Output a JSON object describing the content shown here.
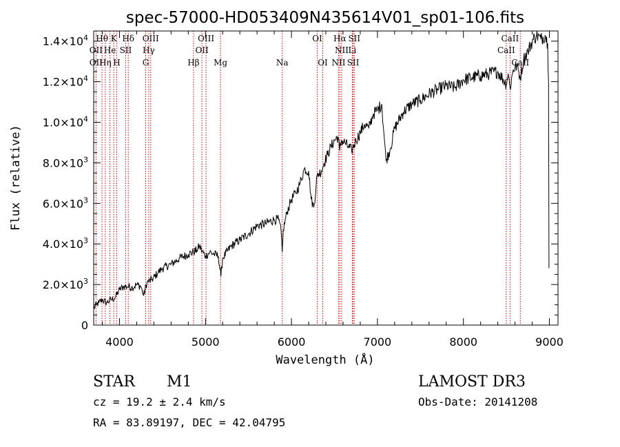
{
  "chart_data": {
    "type": "line",
    "title": "spec-57000-HD053409N435614V01_sp01-106.fits",
    "xlabel": "Wavelength (Å)",
    "ylabel": "Flux (relative)",
    "xlim": [
      3700,
      9100
    ],
    "ylim": [
      0,
      14500
    ],
    "x_ticks": [
      4000,
      5000,
      6000,
      7000,
      8000,
      9000
    ],
    "x_tick_labels": [
      "4000",
      "5000",
      "6000",
      "7000",
      "8000",
      "9000"
    ],
    "y_ticks": [
      0,
      2000,
      4000,
      6000,
      8000,
      10000,
      12000,
      14000
    ],
    "y_tick_labels": [
      {
        "mant": "0",
        "exp": ""
      },
      {
        "mant": "2.0×10",
        "exp": "3"
      },
      {
        "mant": "4.0×10",
        "exp": "3"
      },
      {
        "mant": "6.0×10",
        "exp": "3"
      },
      {
        "mant": "8.0×10",
        "exp": "3"
      },
      {
        "mant": "1.0×10",
        "exp": "4"
      },
      {
        "mant": "1.2×10",
        "exp": "4"
      },
      {
        "mant": "1.4×10",
        "exp": "4"
      }
    ],
    "series": [
      {
        "name": "flux",
        "points": [
          [
            3700,
            800
          ],
          [
            3730,
            1000
          ],
          [
            3760,
            1100
          ],
          [
            3800,
            1250
          ],
          [
            3850,
            1100
          ],
          [
            3900,
            1250
          ],
          [
            3950,
            1350
          ],
          [
            4000,
            1750
          ],
          [
            4050,
            1900
          ],
          [
            4100,
            1900
          ],
          [
            4150,
            1850
          ],
          [
            4200,
            2000
          ],
          [
            4250,
            1900
          ],
          [
            4280,
            1450
          ],
          [
            4320,
            2100
          ],
          [
            4380,
            2250
          ],
          [
            4450,
            2600
          ],
          [
            4500,
            2800
          ],
          [
            4600,
            3000
          ],
          [
            4700,
            3300
          ],
          [
            4800,
            3500
          ],
          [
            4860,
            3600
          ],
          [
            4900,
            3700
          ],
          [
            4930,
            3900
          ],
          [
            4960,
            3650
          ],
          [
            5000,
            3400
          ],
          [
            5050,
            3600
          ],
          [
            5100,
            3500
          ],
          [
            5150,
            3400
          ],
          [
            5180,
            2400
          ],
          [
            5200,
            3300
          ],
          [
            5300,
            3900
          ],
          [
            5400,
            4200
          ],
          [
            5500,
            4500
          ],
          [
            5600,
            4900
          ],
          [
            5700,
            5000
          ],
          [
            5800,
            5200
          ],
          [
            5850,
            5200
          ],
          [
            5880,
            4600
          ],
          [
            5893,
            3600
          ],
          [
            5905,
            4700
          ],
          [
            5950,
            5600
          ],
          [
            6000,
            6200
          ],
          [
            6050,
            6500
          ],
          [
            6100,
            7000
          ],
          [
            6150,
            7700
          ],
          [
            6200,
            7600
          ],
          [
            6230,
            6200
          ],
          [
            6260,
            5800
          ],
          [
            6300,
            7400
          ],
          [
            6350,
            7600
          ],
          [
            6380,
            8000
          ],
          [
            6420,
            8400
          ],
          [
            6460,
            8800
          ],
          [
            6500,
            9100
          ],
          [
            6540,
            9300
          ],
          [
            6562,
            8600
          ],
          [
            6580,
            9100
          ],
          [
            6620,
            9000
          ],
          [
            6660,
            8800
          ],
          [
            6700,
            8600
          ],
          [
            6750,
            9100
          ],
          [
            6800,
            9500
          ],
          [
            6850,
            9900
          ],
          [
            6900,
            9700
          ],
          [
            6950,
            10400
          ],
          [
            7000,
            10600
          ],
          [
            7050,
            10900
          ],
          [
            7080,
            9200
          ],
          [
            7100,
            8100
          ],
          [
            7150,
            8700
          ],
          [
            7200,
            9700
          ],
          [
            7300,
            10500
          ],
          [
            7400,
            10900
          ],
          [
            7500,
            11100
          ],
          [
            7600,
            11400
          ],
          [
            7700,
            11600
          ],
          [
            7800,
            11800
          ],
          [
            7900,
            11700
          ],
          [
            8000,
            12100
          ],
          [
            8100,
            12200
          ],
          [
            8200,
            12300
          ],
          [
            8300,
            12400
          ],
          [
            8400,
            12500
          ],
          [
            8498,
            11900
          ],
          [
            8520,
            12400
          ],
          [
            8542,
            11700
          ],
          [
            8580,
            12600
          ],
          [
            8620,
            12800
          ],
          [
            8662,
            12200
          ],
          [
            8700,
            13100
          ],
          [
            8750,
            13500
          ],
          [
            8800,
            14000
          ],
          [
            8850,
            14300
          ],
          [
            8900,
            14100
          ],
          [
            8950,
            14300
          ],
          [
            8980,
            13900
          ],
          [
            8990,
            12000
          ],
          [
            8995,
            2800
          ]
        ]
      }
    ],
    "lines_top": [
      {
        "label": "Hθ",
        "x": 3797,
        "row": 0
      },
      {
        "label": "K",
        "x": 3934,
        "row": 0
      },
      {
        "label": "Hδ",
        "x": 4102,
        "row": 0
      },
      {
        "label": "OIII",
        "x": 4363,
        "row": 0
      },
      {
        "label": "OIII",
        "x": 5007,
        "row": 0
      },
      {
        "label": "OI",
        "x": 6300,
        "row": 0
      },
      {
        "label": "Hα",
        "x": 6563,
        "row": 0
      },
      {
        "label": "SII",
        "x": 6731,
        "row": 0
      },
      {
        "label": "CaII",
        "x": 8542,
        "row": 0
      },
      {
        "label": "OII",
        "x": 3727,
        "row": 1
      },
      {
        "label": "He",
        "x": 3889,
        "row": 1
      },
      {
        "label": "SII",
        "x": 4072,
        "row": 1
      },
      {
        "label": "Hγ",
        "x": 4340,
        "row": 1
      },
      {
        "label": "OII",
        "x": 4959,
        "row": 1
      },
      {
        "label": "NII",
        "x": 6584,
        "row": 1
      },
      {
        "label": "Li",
        "x": 6708,
        "row": 1
      },
      {
        "label": "CaII",
        "x": 8498,
        "row": 1
      }
    ],
    "lines_bottom": [
      {
        "label": "OII",
        "x": 3727,
        "row": 0
      },
      {
        "label": "Hη",
        "x": 3835,
        "row": 0
      },
      {
        "label": "H",
        "x": 3968,
        "row": 0
      },
      {
        "label": "G",
        "x": 4305,
        "row": 0
      },
      {
        "label": "Hβ",
        "x": 4861,
        "row": 0
      },
      {
        "label": "Mg",
        "x": 5175,
        "row": 0
      },
      {
        "label": "Na",
        "x": 5893,
        "row": 0
      },
      {
        "label": "OI",
        "x": 6364,
        "row": 0
      },
      {
        "label": "NII",
        "x": 6548,
        "row": 0
      },
      {
        "label": "SII",
        "x": 6717,
        "row": 0
      },
      {
        "label": "CaII",
        "x": 8662,
        "row": 0
      }
    ],
    "line_markers": [
      3727,
      3797,
      3835,
      3889,
      3934,
      3968,
      4072,
      4102,
      4305,
      4340,
      4363,
      4861,
      4959,
      5007,
      5175,
      5893,
      6300,
      6364,
      6548,
      6563,
      6584,
      6708,
      6717,
      6731,
      8498,
      8542,
      8662
    ],
    "colors": {
      "line": "#000000",
      "marker": "#c00000",
      "axis": "#000000"
    }
  },
  "info": {
    "object_class": "STAR",
    "subclass": "M1",
    "survey": "LAMOST DR3",
    "cz": "cz = 19.2 ± 2.4 km/s",
    "obs_date": "Obs-Date: 20141208",
    "coords": "RA =  83.89197, DEC =  42.04795"
  }
}
